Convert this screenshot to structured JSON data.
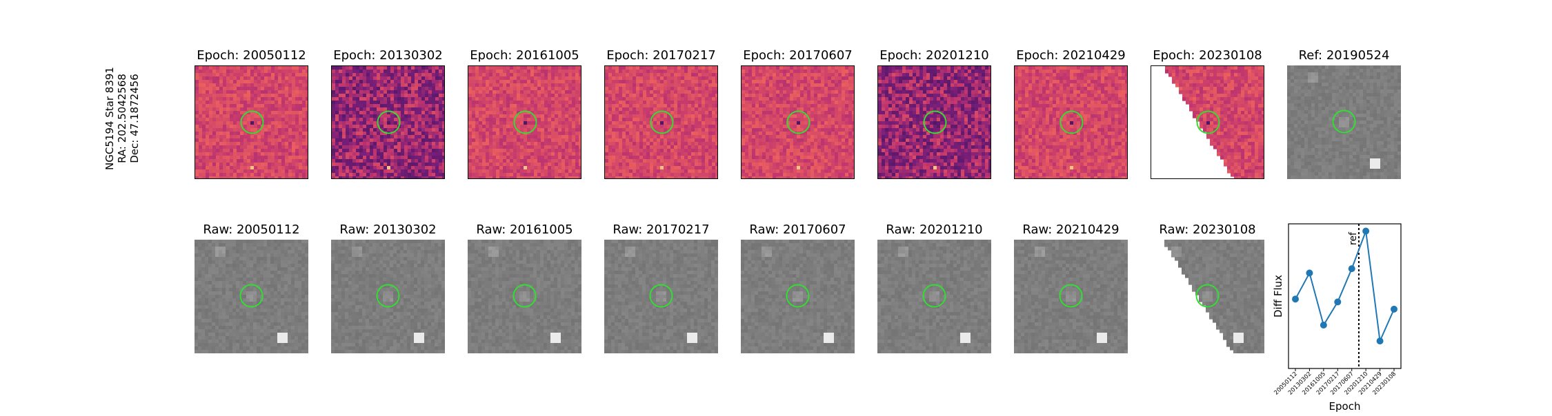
{
  "star_label": {
    "name": "NGC5194 Star 8391",
    "ra": "RA: 202.5042568",
    "dec": "Dec: 47.1872456"
  },
  "top_row": [
    {
      "title": "Epoch: 20050112"
    },
    {
      "title": "Epoch: 20130302"
    },
    {
      "title": "Epoch: 20161005"
    },
    {
      "title": "Epoch: 20170217"
    },
    {
      "title": "Epoch: 20170607"
    },
    {
      "title": "Epoch: 20201210"
    },
    {
      "title": "Epoch: 20210429"
    },
    {
      "title": "Epoch: 20230108"
    },
    {
      "title": "Ref: 20190524"
    }
  ],
  "bottom_row": [
    {
      "title": "Raw: 20050112"
    },
    {
      "title": "Raw: 20130302"
    },
    {
      "title": "Raw: 20161005"
    },
    {
      "title": "Raw: 20170217"
    },
    {
      "title": "Raw: 20170607"
    },
    {
      "title": "Raw: 20201210"
    },
    {
      "title": "Raw: 20210429"
    },
    {
      "title": "Raw: 20230108"
    }
  ],
  "colors": {
    "circle": "#33dd33",
    "series": "#1f77b4"
  },
  "chart_data": {
    "type": "line",
    "title": "",
    "xlabel": "Epoch",
    "ylabel": "Diff Flux",
    "categories": [
      "20050112",
      "20130302",
      "20161005",
      "20170217",
      "20170607",
      "20201210",
      "20210429",
      "20230108"
    ],
    "values": [
      0.48,
      0.66,
      0.3,
      0.46,
      0.69,
      0.95,
      0.19,
      0.41
    ],
    "ylim": [
      0,
      1
    ],
    "ref_line": {
      "label": "ref",
      "position": 4.5
    },
    "grid": false
  }
}
